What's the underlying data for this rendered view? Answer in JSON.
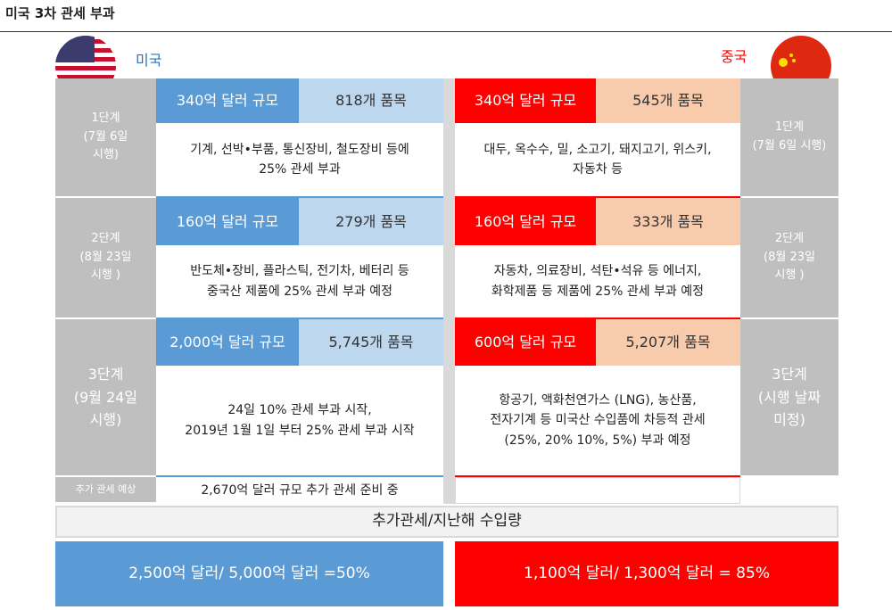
{
  "header": {
    "title": "미국 3차 관세 부과",
    "us_label": "미국",
    "china_label": "중국"
  },
  "stages": [
    {
      "us_label": [
        "1단계",
        "(7월 6일",
        "시행)"
      ],
      "us_size": "340억 달러 규모",
      "us_items": "818개 품목",
      "us_desc": [
        "기계, 선박•부품, 통신장비, 철도장비 등에",
        "25% 관세 부과"
      ],
      "cn_size": "340억 달러 규모",
      "cn_items": "545개 품목",
      "cn_desc": [
        "대두, 옥수수, 밀, 소고기, 돼지고기, 위스키,",
        "자동차 등"
      ],
      "cn_label": [
        "1단계",
        "(7월 6일 시행)"
      ]
    },
    {
      "us_label": [
        "2단계",
        "(8월 23일",
        "시행 )"
      ],
      "us_size": "160억 달러 규모",
      "us_items": "279개 품목",
      "us_desc": [
        "반도체•장비, 플라스틱, 전기차, 베터리 등",
        "중국산 제품에 25% 관세 부과 예정"
      ],
      "cn_size": "160억 달러 규모",
      "cn_items": "333개 품목",
      "cn_desc": [
        "자동차, 의료장비, 석탄•석유 등 에너지,",
        "화학제품 등 제품에 25% 관세 부과 예정"
      ],
      "cn_label": [
        "2단계",
        "(8월 23일",
        "시행 )"
      ]
    },
    {
      "us_label": [
        "3단계",
        "(9월 24일",
        "시행)"
      ],
      "us_size": "2,000억 달러 규모",
      "us_items": "5,745개 품목",
      "us_desc": [
        "24일 10% 관세 부과 시작,",
        "2019년 1월 1일 부터 25% 관세 부과 시작"
      ],
      "cn_size": "600억 달러 규모",
      "cn_items": "5,207개 품목",
      "cn_desc": [
        "항공기, 액화천연가스 (LNG), 농산품,",
        "전자기계 등 미국산 수입품에 차등적 관세",
        "(25%, 20% 10%, 5%) 부과 예정"
      ],
      "cn_label": [
        "3단계",
        "(시행 날짜",
        "미정)"
      ]
    }
  ],
  "extra": {
    "label": "추가 관세 예상",
    "text": "2,670억 달러 규모 추가 관세 준비 중"
  },
  "summary": {
    "title": "추가관세/지난해 수입량",
    "us": "2,500억 달러/ 5,000억 달러 =50%",
    "cn": "1,100억 달러/ 1,300억 달러 = 85%"
  }
}
